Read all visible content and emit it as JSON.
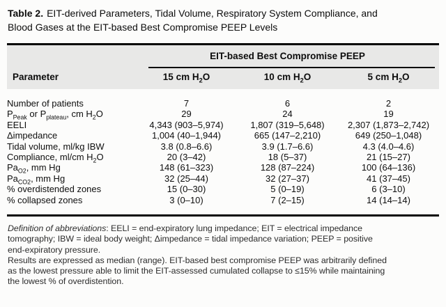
{
  "title": {
    "label": "Table 2.",
    "line1": "EIT-derived Parameters, Tidal Volume, Respiratory System Compliance, and",
    "line2": "Blood Gases at the EIT-based Best Compromise PEEP Levels"
  },
  "table": {
    "group_header": "EIT-based Best Compromise PEEP",
    "param_header": "Parameter",
    "col_headers": [
      "15 cm H~2~O",
      "10 cm H~2~O",
      "5 cm H~2~O"
    ],
    "rows": [
      {
        "param": "Number of patients",
        "values": [
          "7",
          "6",
          "2"
        ]
      },
      {
        "param": "P~Peak~ or P~plateau~, cm H~2~O",
        "values": [
          "29",
          "24",
          "19"
        ]
      },
      {
        "param": "EELI",
        "values": [
          "4,343 (903–5,974)",
          "1,807 (319–5,648)",
          "2,307 (1,873–2,742)"
        ]
      },
      {
        "param": "Δimpedance",
        "values": [
          "1,004 (40–1,944)",
          "665 (147–2,210)",
          "649 (250–1,048)"
        ]
      },
      {
        "param": "Tidal volume, ml/kg IBW",
        "values": [
          "3.8 (0.8–6.6)",
          "3.9 (1.7–6.6)",
          "4.3 (4.0–4.6)"
        ]
      },
      {
        "param": "Compliance, ml/cm H~2~O",
        "values": [
          "20 (3–42)",
          "18 (5–37)",
          "21 (15–27)"
        ]
      },
      {
        "param": "Pa~O2~, mm Hg",
        "values": [
          "148 (61–323)",
          "128 (87–224)",
          "100 (64–136)"
        ]
      },
      {
        "param": "Pa~CO2~, mm Hg",
        "values": [
          "32 (25–44)",
          "32 (27–37)",
          "41 (37–45)"
        ]
      },
      {
        "param": "% overdistended zones",
        "values": [
          "15 (0–30)",
          "5 (0–19)",
          "6 (3–10)"
        ]
      },
      {
        "param": "% collapsed zones",
        "values": [
          "3 (0–10)",
          "7 (2–15)",
          "14 (14–14)"
        ]
      }
    ]
  },
  "footnote": {
    "abbrev_label": "Definition of abbreviations",
    "lines": [
      ": EELI = end-expiratory lung impedance; EIT = electrical impedance",
      "tomography; IBW = ideal body weight; Δimpedance = tidal impedance variation; PEEP = positive",
      "end-expiratory pressure.",
      "Results are expressed as median (range). EIT-based best compromise PEEP was arbitrarily defined",
      "as the lowest pressure able to limit the EIT-assessed cumulated collapse to ≤15% while maintaining",
      "the lowest % of overdistention."
    ]
  },
  "colors": {
    "header_band": "#e8e8e7",
    "rule": "#000000",
    "text": "#0f0f0f"
  }
}
